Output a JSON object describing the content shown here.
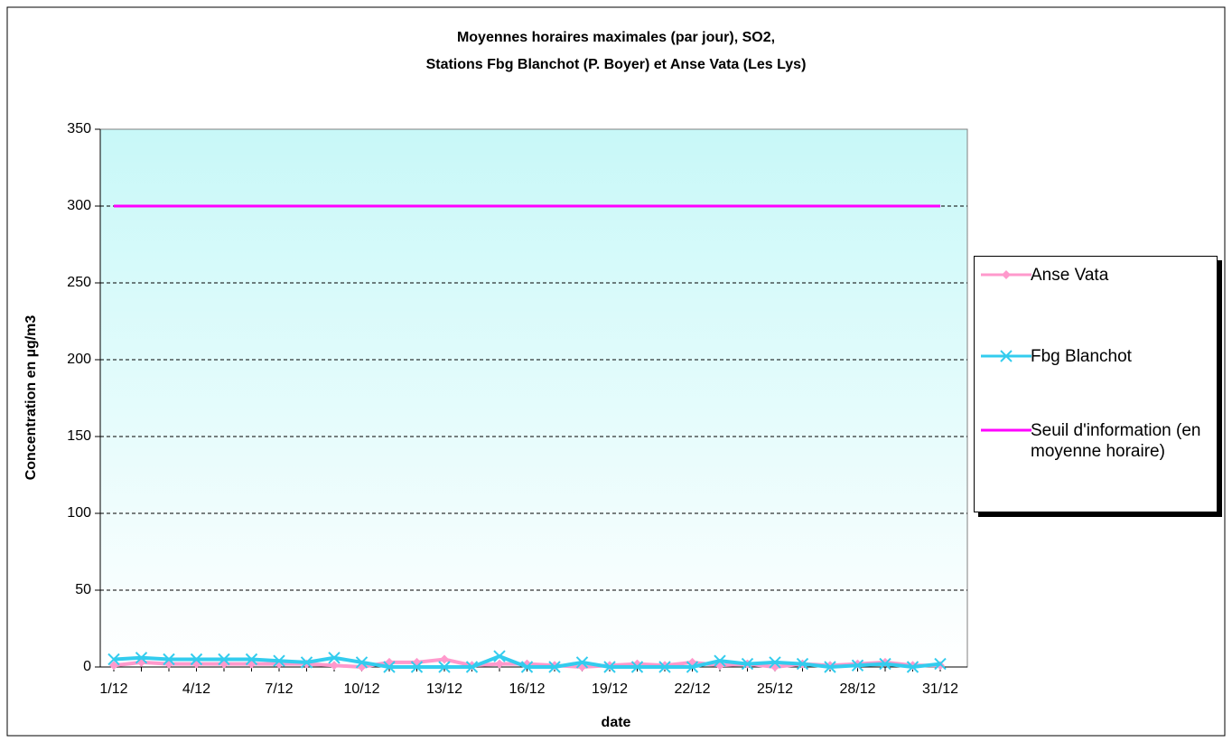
{
  "chart_data": {
    "type": "line",
    "title": "Moyennes horaires maximales (par jour), SO2,",
    "subtitle": "Stations Fbg Blanchot (P. Boyer) et Anse Vata (Les Lys)",
    "x_label": "date",
    "y_label": "Concentration en µg/m3",
    "categories": [
      "1/12",
      null,
      null,
      "4/12",
      null,
      null,
      "7/12",
      null,
      null,
      "10/12",
      null,
      null,
      "13/12",
      null,
      null,
      "16/12",
      null,
      null,
      "19/12",
      null,
      null,
      "22/12",
      null,
      null,
      "25/12",
      null,
      null,
      "28/12",
      null,
      null,
      "31/12"
    ],
    "series": [
      {
        "name": "Anse Vata",
        "color": "#ff99cc",
        "marker": "diamond",
        "values": [
          1,
          3,
          2,
          2,
          2,
          2,
          2,
          2,
          1,
          0,
          3,
          3,
          5,
          1,
          2,
          2,
          1,
          0,
          1,
          2,
          1,
          3,
          1,
          2,
          0,
          2,
          1,
          2,
          3,
          1,
          1
        ]
      },
      {
        "name": "Fbg Blanchot",
        "color": "#33ccee",
        "marker": "x",
        "values": [
          5,
          6,
          5,
          5,
          5,
          5,
          4,
          3,
          6,
          3,
          0,
          0,
          0,
          0,
          7,
          0,
          0,
          3,
          0,
          0,
          0,
          0,
          4,
          2,
          3,
          2,
          0,
          1,
          2,
          0,
          2
        ]
      },
      {
        "name": "Seuil d'information (en moyenne horaire)",
        "color": "#ff00ff",
        "marker": "none",
        "values": [
          300,
          300,
          300,
          300,
          300,
          300,
          300,
          300,
          300,
          300,
          300,
          300,
          300,
          300,
          300,
          300,
          300,
          300,
          300,
          300,
          300,
          300,
          300,
          300,
          300,
          300,
          300,
          300,
          300,
          300,
          300
        ]
      }
    ],
    "ylim": [
      0,
      350
    ],
    "yticks": [
      0,
      50,
      100,
      150,
      200,
      250,
      300,
      350
    ],
    "grid": true,
    "legend": "right"
  }
}
